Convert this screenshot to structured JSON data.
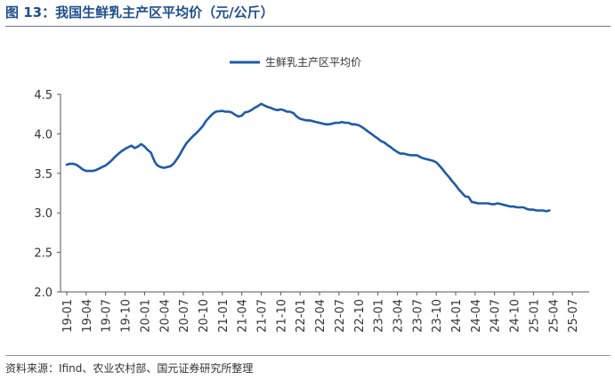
{
  "header": {
    "title": "图 13：我国生鲜乳主产区平均价（元/公斤）"
  },
  "footer": {
    "source": "资料来源：Ifind、农业农村部、国元证券研究所整理"
  },
  "chart_data": {
    "type": "line",
    "title": "",
    "xlabel": "",
    "ylabel": "",
    "ylim": [
      2.0,
      4.5
    ],
    "yticks": [
      "2.0",
      "2.5",
      "3.0",
      "3.5",
      "4.0",
      "4.5"
    ],
    "xticks": [
      "19-01",
      "19-04",
      "19-07",
      "19-10",
      "20-01",
      "20-04",
      "20-07",
      "20-10",
      "21-01",
      "21-04",
      "21-07",
      "21-10",
      "22-01",
      "22-04",
      "22-07",
      "22-10",
      "23-01",
      "23-04",
      "23-07",
      "23-10",
      "24-01",
      "24-04",
      "24-07",
      "24-10",
      "25-01",
      "25-04",
      "25-07"
    ],
    "legend_position": "top-center",
    "grid": false,
    "series": [
      {
        "name": "生鲜乳主产区平均价",
        "color": "#1f5aa6",
        "points": [
          [
            "2019-01-01",
            3.61
          ],
          [
            "2019-01-15",
            3.62
          ],
          [
            "2019-02-01",
            3.62
          ],
          [
            "2019-02-15",
            3.61
          ],
          [
            "2019-03-01",
            3.58
          ],
          [
            "2019-03-15",
            3.55
          ],
          [
            "2019-04-01",
            3.53
          ],
          [
            "2019-04-15",
            3.53
          ],
          [
            "2019-05-01",
            3.53
          ],
          [
            "2019-05-15",
            3.54
          ],
          [
            "2019-06-01",
            3.56
          ],
          [
            "2019-06-15",
            3.58
          ],
          [
            "2019-07-01",
            3.6
          ],
          [
            "2019-07-15",
            3.63
          ],
          [
            "2019-08-01",
            3.67
          ],
          [
            "2019-08-15",
            3.71
          ],
          [
            "2019-09-01",
            3.75
          ],
          [
            "2019-09-15",
            3.78
          ],
          [
            "2019-10-01",
            3.81
          ],
          [
            "2019-10-15",
            3.83
          ],
          [
            "2019-11-01",
            3.85
          ],
          [
            "2019-11-15",
            3.82
          ],
          [
            "2019-12-01",
            3.84
          ],
          [
            "2019-12-15",
            3.87
          ],
          [
            "2020-01-01",
            3.84
          ],
          [
            "2020-01-15",
            3.8
          ],
          [
            "2020-02-01",
            3.76
          ],
          [
            "2020-02-10",
            3.7
          ],
          [
            "2020-02-20",
            3.64
          ],
          [
            "2020-03-01",
            3.6
          ],
          [
            "2020-03-15",
            3.58
          ],
          [
            "2020-04-01",
            3.57
          ],
          [
            "2020-04-15",
            3.58
          ],
          [
            "2020-05-01",
            3.59
          ],
          [
            "2020-05-15",
            3.62
          ],
          [
            "2020-06-01",
            3.68
          ],
          [
            "2020-06-15",
            3.74
          ],
          [
            "2020-07-01",
            3.82
          ],
          [
            "2020-07-15",
            3.88
          ],
          [
            "2020-08-01",
            3.93
          ],
          [
            "2020-08-15",
            3.97
          ],
          [
            "2020-09-01",
            4.01
          ],
          [
            "2020-09-15",
            4.05
          ],
          [
            "2020-10-01",
            4.1
          ],
          [
            "2020-10-15",
            4.16
          ],
          [
            "2020-11-01",
            4.21
          ],
          [
            "2020-11-15",
            4.25
          ],
          [
            "2020-12-01",
            4.28
          ],
          [
            "2021-01-01",
            4.29
          ],
          [
            "2021-01-15",
            4.28
          ],
          [
            "2021-02-01",
            4.28
          ],
          [
            "2021-02-15",
            4.27
          ],
          [
            "2021-03-01",
            4.24
          ],
          [
            "2021-03-15",
            4.22
          ],
          [
            "2021-04-01",
            4.23
          ],
          [
            "2021-04-15",
            4.27
          ],
          [
            "2021-05-01",
            4.28
          ],
          [
            "2021-05-15",
            4.3
          ],
          [
            "2021-06-01",
            4.33
          ],
          [
            "2021-06-15",
            4.35
          ],
          [
            "2021-07-01",
            4.38
          ],
          [
            "2021-07-15",
            4.36
          ],
          [
            "2021-08-01",
            4.34
          ],
          [
            "2021-08-15",
            4.33
          ],
          [
            "2021-09-01",
            4.31
          ],
          [
            "2021-09-15",
            4.3
          ],
          [
            "2021-10-01",
            4.31
          ],
          [
            "2021-10-15",
            4.3
          ],
          [
            "2021-11-01",
            4.28
          ],
          [
            "2021-11-15",
            4.28
          ],
          [
            "2021-12-01",
            4.26
          ],
          [
            "2021-12-15",
            4.22
          ],
          [
            "2022-01-01",
            4.19
          ],
          [
            "2022-01-15",
            4.18
          ],
          [
            "2022-02-01",
            4.17
          ],
          [
            "2022-02-15",
            4.17
          ],
          [
            "2022-03-01",
            4.16
          ],
          [
            "2022-03-15",
            4.15
          ],
          [
            "2022-04-01",
            4.14
          ],
          [
            "2022-04-15",
            4.13
          ],
          [
            "2022-05-01",
            4.12
          ],
          [
            "2022-05-15",
            4.12
          ],
          [
            "2022-06-01",
            4.13
          ],
          [
            "2022-06-15",
            4.14
          ],
          [
            "2022-07-01",
            4.14
          ],
          [
            "2022-07-15",
            4.15
          ],
          [
            "2022-08-01",
            4.14
          ],
          [
            "2022-08-15",
            4.14
          ],
          [
            "2022-09-01",
            4.12
          ],
          [
            "2022-09-15",
            4.12
          ],
          [
            "2022-10-01",
            4.11
          ],
          [
            "2022-10-15",
            4.09
          ],
          [
            "2022-11-01",
            4.06
          ],
          [
            "2022-11-15",
            4.03
          ],
          [
            "2022-12-01",
            4.0
          ],
          [
            "2022-12-15",
            3.97
          ],
          [
            "2023-01-01",
            3.94
          ],
          [
            "2023-01-15",
            3.91
          ],
          [
            "2023-02-01",
            3.89
          ],
          [
            "2023-02-15",
            3.86
          ],
          [
            "2023-03-01",
            3.83
          ],
          [
            "2023-03-15",
            3.8
          ],
          [
            "2023-04-01",
            3.77
          ],
          [
            "2023-04-15",
            3.75
          ],
          [
            "2023-05-01",
            3.75
          ],
          [
            "2023-05-15",
            3.74
          ],
          [
            "2023-06-01",
            3.73
          ],
          [
            "2023-06-15",
            3.73
          ],
          [
            "2023-07-01",
            3.73
          ],
          [
            "2023-07-15",
            3.71
          ],
          [
            "2023-08-01",
            3.69
          ],
          [
            "2023-08-15",
            3.68
          ],
          [
            "2023-09-01",
            3.67
          ],
          [
            "2023-09-15",
            3.66
          ],
          [
            "2023-10-01",
            3.64
          ],
          [
            "2023-10-15",
            3.6
          ],
          [
            "2023-11-01",
            3.55
          ],
          [
            "2023-11-15",
            3.5
          ],
          [
            "2023-12-01",
            3.45
          ],
          [
            "2023-12-15",
            3.4
          ],
          [
            "2024-01-01",
            3.35
          ],
          [
            "2024-01-15",
            3.3
          ],
          [
            "2024-02-01",
            3.25
          ],
          [
            "2024-02-15",
            3.21
          ],
          [
            "2024-03-01",
            3.2
          ],
          [
            "2024-03-15",
            3.14
          ],
          [
            "2024-04-01",
            3.13
          ],
          [
            "2024-04-15",
            3.12
          ],
          [
            "2024-05-01",
            3.12
          ],
          [
            "2024-05-15",
            3.12
          ],
          [
            "2024-06-01",
            3.12
          ],
          [
            "2024-06-15",
            3.11
          ],
          [
            "2024-07-01",
            3.11
          ],
          [
            "2024-07-15",
            3.12
          ],
          [
            "2024-08-01",
            3.11
          ],
          [
            "2024-08-15",
            3.1
          ],
          [
            "2024-09-01",
            3.09
          ],
          [
            "2024-09-15",
            3.08
          ],
          [
            "2024-10-01",
            3.08
          ],
          [
            "2024-10-15",
            3.07
          ],
          [
            "2024-11-01",
            3.07
          ],
          [
            "2024-11-15",
            3.07
          ],
          [
            "2024-12-01",
            3.05
          ],
          [
            "2024-12-15",
            3.04
          ],
          [
            "2025-01-01",
            3.04
          ],
          [
            "2025-01-15",
            3.03
          ],
          [
            "2025-02-01",
            3.03
          ],
          [
            "2025-02-15",
            3.03
          ],
          [
            "2025-03-01",
            3.02
          ],
          [
            "2025-03-15",
            3.03
          ]
        ]
      }
    ]
  }
}
